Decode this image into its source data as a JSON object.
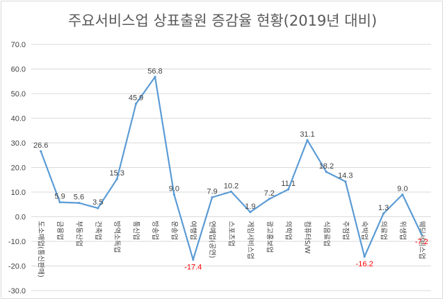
{
  "chart_data": {
    "type": "line",
    "title": "주요서비스업 상표출원 증감율 현황(2019년 대비)",
    "ylim": [
      -30,
      70
    ],
    "yticks": [
      "70.0",
      "60.0",
      "50.0",
      "40.0",
      "30.0",
      "20.0",
      "10.0",
      "0.0",
      "-10.0",
      "-20.0",
      "-30.0"
    ],
    "grid": true,
    "legend": "none",
    "colors": {
      "line": "#5b9bd5",
      "grid": "#d9d9d9",
      "positive_label": "#404040",
      "negative_label": "#ff0000"
    },
    "categories": [
      "도소매업(통신판매)",
      "금융업",
      "부동산업",
      "건축업",
      "방역소독업",
      "통신업",
      "방송업",
      "운송업",
      "여행업",
      "연예업(공연)",
      "스포츠업",
      "게임서비스업",
      "광고홍보업",
      "의학업",
      "컴퓨터S/W",
      "식음료업",
      "주점업",
      "숙박업",
      "의료업",
      "위생업",
      "웨딩서비스업"
    ],
    "series": [
      {
        "values": [
          26.6,
          5.9,
          5.6,
          3.5,
          15.3,
          45.9,
          56.8,
          9.0,
          -17.4,
          7.9,
          10.2,
          1.9,
          7.2,
          11.1,
          31.1,
          18.2,
          14.3,
          -16.2,
          1.3,
          9.0,
          -7.2
        ]
      }
    ],
    "data_labels": [
      "26.6",
      "5.9",
      "5.6",
      "3.5",
      "15.3",
      "45.9",
      "56.8",
      "9.0",
      "-17.4",
      "7.9",
      "10.2",
      "1.9",
      "7.2",
      "11.1",
      "31.1",
      "18.2",
      "14.3",
      "-16.2",
      "1.3",
      "9.0",
      "-7.2"
    ]
  }
}
